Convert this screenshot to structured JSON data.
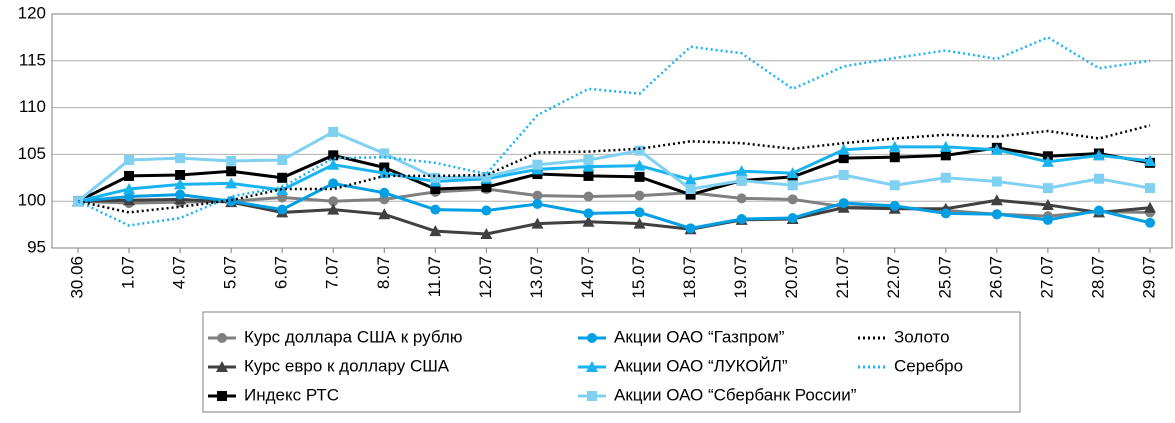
{
  "chart_data": {
    "type": "line",
    "categories": [
      "30.06",
      "1.07",
      "4.07",
      "5.07",
      "6.07",
      "7.07",
      "8.07",
      "11.07",
      "12.07",
      "13.07",
      "14.07",
      "15.07",
      "18.07",
      "19.07",
      "20.07",
      "21.07",
      "22.07",
      "25.07",
      "26.07",
      "27.07",
      "28.07",
      "29.07"
    ],
    "ylim": [
      95,
      120
    ],
    "yticks": [
      95,
      100,
      105,
      110,
      115,
      120
    ],
    "grid": true,
    "series": [
      {
        "name": "Курс доллара США к рублю",
        "color": "#808080",
        "marker": "circle",
        "style": "solid",
        "values": [
          100,
          99.8,
          99.9,
          100,
          100.4,
          100,
          100.2,
          101,
          101.3,
          100.6,
          100.5,
          100.6,
          100.9,
          100.3,
          100.2,
          99.4,
          99.3,
          99,
          98.6,
          98.4,
          98.9,
          98.8
        ]
      },
      {
        "name": "Курс евро к доллару США",
        "color": "#404040",
        "marker": "triangle",
        "style": "solid",
        "values": [
          100,
          100.1,
          100.2,
          99.9,
          98.8,
          99.1,
          98.6,
          96.8,
          96.5,
          97.6,
          97.8,
          97.6,
          97,
          98,
          98.1,
          99.3,
          99.2,
          99.2,
          100.1,
          99.6,
          98.8,
          99.3
        ]
      },
      {
        "name": "Индекс РТС",
        "color": "#000000",
        "marker": "square",
        "style": "solid",
        "values": [
          100,
          102.7,
          102.8,
          103.2,
          102.5,
          104.9,
          103.6,
          101.3,
          101.5,
          102.9,
          102.7,
          102.6,
          100.7,
          102.2,
          102.6,
          104.6,
          104.7,
          104.9,
          105.7,
          104.8,
          105.1,
          104.1
        ]
      },
      {
        "name": "Акции ОАО “Газпром”",
        "color": "#009fe3",
        "marker": "circle",
        "style": "solid",
        "values": [
          100,
          100.5,
          100.7,
          100,
          99.1,
          101.9,
          100.9,
          99.1,
          99,
          99.7,
          98.7,
          98.8,
          97.1,
          98.1,
          98.2,
          99.8,
          99.5,
          98.7,
          98.6,
          98,
          99,
          97.7
        ]
      },
      {
        "name": "Акции ОАО “ЛУКОЙЛ”",
        "color": "#19b4f0",
        "marker": "triangle",
        "style": "solid",
        "values": [
          100,
          101.3,
          101.8,
          101.9,
          101.2,
          103.9,
          103,
          102.1,
          102.4,
          103.4,
          103.7,
          103.8,
          102.3,
          103.2,
          103,
          105.5,
          105.8,
          105.8,
          105.5,
          104.2,
          104.9,
          104.3
        ]
      },
      {
        "name": "Акции ОАО “Сбербанк России”",
        "color": "#80d0f2",
        "marker": "square",
        "style": "solid",
        "values": [
          100,
          104.4,
          104.6,
          104.3,
          104.4,
          107.4,
          105.1,
          102.5,
          102.6,
          103.9,
          104.4,
          105.4,
          101.3,
          102.2,
          101.7,
          102.8,
          101.7,
          102.5,
          102.1,
          101.4,
          102.4,
          101.4
        ]
      },
      {
        "name": "Золото",
        "color": "#000000",
        "marker": "none",
        "style": "dotted",
        "values": [
          100,
          98.8,
          99.4,
          100.1,
          101.3,
          101.3,
          102.7,
          102.7,
          102.8,
          105.2,
          105.3,
          105.6,
          106.4,
          106.2,
          105.6,
          106.2,
          106.7,
          107.1,
          106.9,
          107.5,
          106.7,
          108.1
        ]
      },
      {
        "name": "Серебро",
        "color": "#19b4f0",
        "marker": "none",
        "style": "dotted",
        "values": [
          100,
          97.4,
          98.2,
          100.5,
          101.5,
          104.6,
          104.7,
          104.1,
          102.9,
          109.2,
          112,
          111.5,
          116.5,
          115.8,
          112,
          114.4,
          115.3,
          116.1,
          115.2,
          117.5,
          114.2,
          115
        ]
      }
    ]
  }
}
